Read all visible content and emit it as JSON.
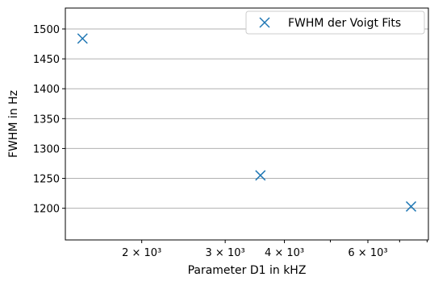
{
  "chart_data": {
    "type": "scatter",
    "title": "",
    "xlabel": "Parameter D1 in kHZ",
    "ylabel": "FWHM in Hz",
    "xscale": "log",
    "xlim": [
      1380,
      8050
    ],
    "ylim": [
      1147,
      1535
    ],
    "grid": "y-major",
    "legend_position": "top-right",
    "x_ticks": [
      {
        "value": 2000,
        "label": "2 × 10³"
      },
      {
        "value": 3000,
        "label": "3 × 10³"
      },
      {
        "value": 4000,
        "label": "4 × 10³"
      },
      {
        "value": 6000,
        "label": "6 × 10³"
      }
    ],
    "y_ticks": [
      1200,
      1250,
      1300,
      1350,
      1400,
      1450,
      1500
    ],
    "series": [
      {
        "name": "FWHM der Voigt Fits",
        "marker": "x",
        "color": "#1f77b4",
        "x": [
          1500,
          3560,
          7400
        ],
        "y": [
          1484,
          1255,
          1203
        ]
      }
    ]
  }
}
